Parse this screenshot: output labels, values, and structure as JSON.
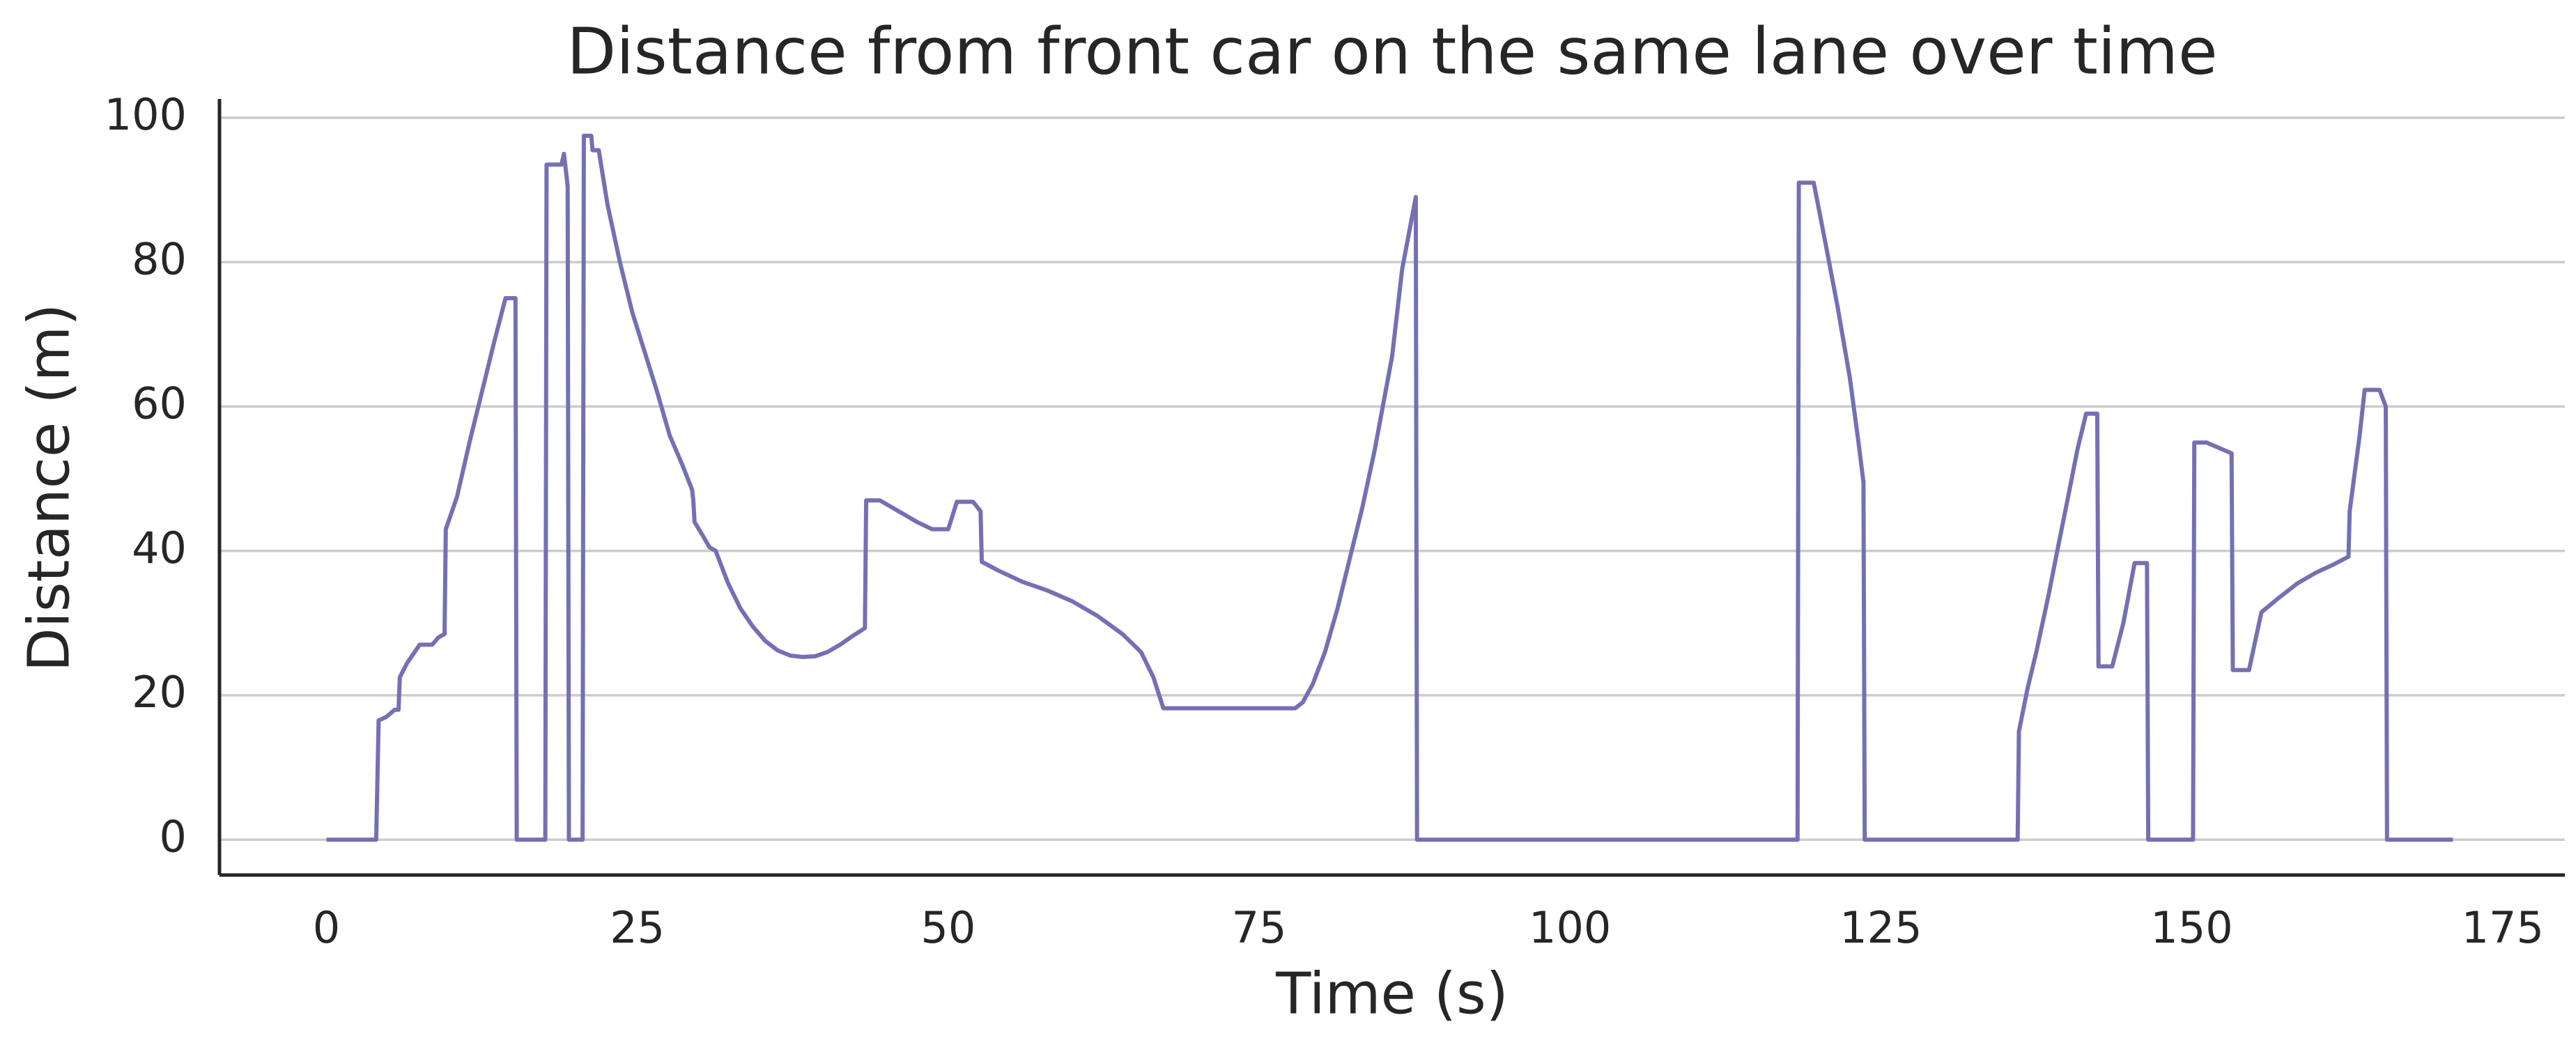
{
  "chart_data": {
    "type": "line",
    "title": "Distance from front car on the same lane over time",
    "x_label": "Time (s)",
    "y_label": "Distance (m)",
    "color": "#7570b3",
    "grid": true,
    "xlim": [
      -8.6,
      180
    ],
    "ylim": [
      -4.9,
      102.6
    ],
    "xticks": [
      0,
      25,
      50,
      75,
      100,
      125,
      150,
      175
    ],
    "yticks": [
      0,
      20,
      40,
      60,
      80,
      100
    ],
    "x": [
      0,
      4,
      4.2,
      4.8,
      5.5,
      5.8,
      5.9,
      6.5,
      7.5,
      8.5,
      9,
      9.5,
      9.6,
      10.5,
      11.5,
      12.5,
      13.5,
      14.4,
      15.2,
      15.3,
      17.6,
      17.7,
      18.9,
      19.1,
      19.4,
      19.5,
      20.6,
      20.7,
      21.3,
      21.4,
      21.9,
      22.6,
      23.6,
      24.6,
      25.6,
      26.6,
      27.6,
      28.6,
      29.4,
      29.5,
      29.6,
      30.3,
      30.8,
      31.3,
      32.3,
      33.3,
      34.3,
      35.3,
      36.3,
      37.3,
      38.3,
      39.3,
      40.3,
      41.3,
      42.3,
      43.3,
      43.4,
      44.5,
      45.5,
      46.5,
      47.5,
      48.7,
      50,
      50.7,
      52,
      52.6,
      52.7,
      54,
      56,
      58,
      60,
      62,
      64,
      65.5,
      66.5,
      67.3,
      70,
      75,
      77.9,
      78.5,
      79.3,
      80.3,
      81.3,
      82.3,
      83.3,
      84.3,
      85,
      85.7,
      86.5,
      87.6,
      87.7,
      118.3,
      118.4,
      119.6,
      120.5,
      121.5,
      122.5,
      123.2,
      123.6,
      123.7,
      136,
      136.1,
      136.8,
      137.5,
      138.5,
      139.3,
      140,
      140.8,
      141.5,
      142.4,
      142.5,
      143.6,
      144.5,
      145.4,
      146.4,
      146.5,
      150.1,
      150.2,
      151.2,
      153.2,
      153.3,
      154.6,
      155.6,
      157,
      158.5,
      160,
      161.5,
      162.6,
      162.7,
      163.5,
      163.9,
      165.1,
      165.6,
      165.7,
      171
    ],
    "values": [
      0,
      0,
      16.5,
      17,
      18,
      18,
      22.5,
      24.5,
      27,
      27,
      28,
      28.5,
      43,
      47.5,
      55,
      62,
      69,
      75,
      75,
      0,
      0,
      93.5,
      93.5,
      95,
      90.5,
      0,
      0,
      97.5,
      97.5,
      95.5,
      95.5,
      88,
      80,
      73,
      67.5,
      62,
      56,
      52,
      48.5,
      47,
      44,
      42,
      40.5,
      40,
      35.5,
      32,
      29.5,
      27.5,
      26.2,
      25.5,
      25.3,
      25.4,
      26,
      27,
      28.2,
      29.3,
      47,
      47,
      46,
      45,
      44,
      43,
      43,
      46.8,
      46.8,
      45.5,
      38.5,
      37.3,
      35.7,
      34.5,
      33,
      31,
      28.5,
      26,
      22.5,
      18.2,
      18.2,
      18.2,
      18.2,
      19,
      21.5,
      26,
      32,
      39,
      46,
      54,
      60.5,
      67,
      79,
      89,
      0,
      0,
      91,
      91,
      83,
      74,
      64,
      55,
      49.5,
      0,
      0,
      15,
      21,
      26,
      34,
      41,
      47,
      54,
      59,
      59,
      24,
      24,
      30,
      38.3,
      38.3,
      0,
      0,
      55,
      55,
      53.5,
      23.5,
      23.5,
      31.5,
      33.5,
      35.5,
      37,
      38.2,
      39.2,
      45.5,
      56,
      62.3,
      62.3,
      60,
      0,
      0
    ]
  }
}
